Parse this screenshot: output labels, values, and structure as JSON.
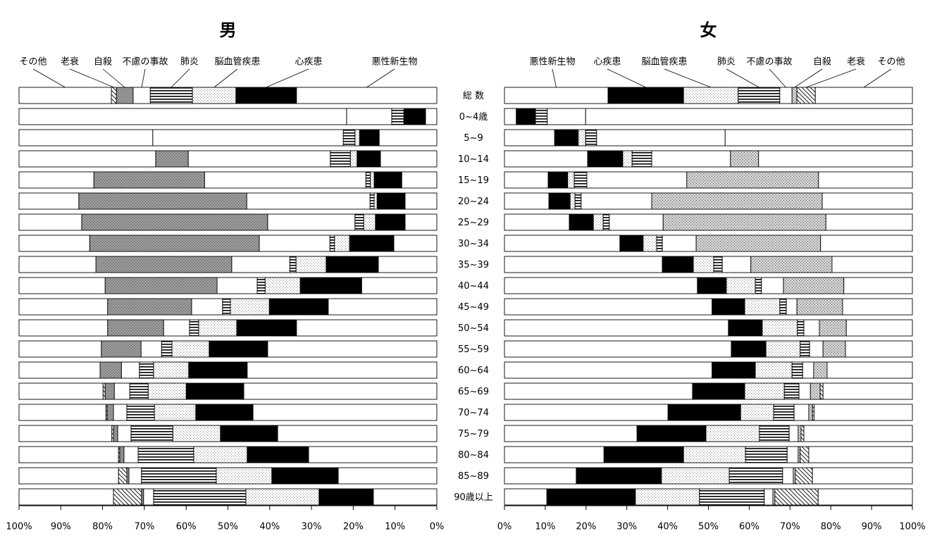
{
  "chart_data": [
    {
      "type": "stacked-bar-horizontal",
      "title": "男",
      "categories": [
        "総 数",
        "0~4歳",
        "5~9",
        "10~14",
        "15~19",
        "20~24",
        "25~29",
        "30~34",
        "35~39",
        "40~44",
        "45~49",
        "50~54",
        "55~59",
        "60~64",
        "65~69",
        "70~74",
        "75~79",
        "80~84",
        "85~89",
        "90歳以上"
      ],
      "xlim": [
        100,
        0
      ],
      "xticks": [
        {
          "value": 100,
          "label": "100%"
        },
        {
          "value": 90,
          "label": "90%"
        },
        {
          "value": 80,
          "label": "80%"
        },
        {
          "value": 70,
          "label": "70%"
        },
        {
          "value": 60,
          "label": "60%"
        },
        {
          "value": 50,
          "label": "50%"
        },
        {
          "value": 40,
          "label": "40%"
        },
        {
          "value": 30,
          "label": "30%"
        },
        {
          "value": 20,
          "label": "20%"
        },
        {
          "value": 10,
          "label": "10%"
        },
        {
          "value": 0,
          "label": "0%"
        }
      ],
      "series": [
        {
          "name": "悪性新生物",
          "color": "#ffffff",
          "pattern": "none",
          "values": [
            33.6,
            2.7,
            13.8,
            13.5,
            8.4,
            7.6,
            7.6,
            10.3,
            14.0,
            18.0,
            26.0,
            33.6,
            40.5,
            45.4,
            46.2,
            44.0,
            38.1,
            30.7,
            23.6,
            15.2
          ]
        },
        {
          "name": "心疾患",
          "color": "#000000",
          "pattern": "none",
          "values": [
            14.5,
            5.2,
            4.7,
            5.6,
            6.6,
            6.7,
            7.1,
            10.6,
            12.5,
            14.7,
            14.1,
            14.3,
            14.0,
            14.0,
            13.8,
            13.7,
            13.7,
            14.7,
            15.9,
            13.0
          ]
        },
        {
          "name": "脳血管疾患",
          "color": "#ffffff",
          "pattern": "dots",
          "values": [
            10.4,
            0,
            1.1,
            1.6,
            0.9,
            0.7,
            2.8,
            3.6,
            7.2,
            8.4,
            9.3,
            9.1,
            8.9,
            8.4,
            9.1,
            9.9,
            11.4,
            12.8,
            13.3,
            17.5
          ]
        },
        {
          "name": "肺炎",
          "color": "#ffffff",
          "pattern": "hlines",
          "values": [
            10.1,
            2.9,
            2.8,
            4.8,
            1.1,
            1.0,
            2.1,
            1.1,
            1.5,
            1.9,
            1.9,
            2.2,
            2.5,
            3.4,
            4.4,
            6.6,
            10.0,
            13.3,
            17.9,
            22.1
          ]
        },
        {
          "name": "不慮の事故",
          "color": "#ffffff",
          "pattern": "none",
          "values": [
            4.1,
            10.8,
            45.6,
            34.0,
            38.6,
            29.5,
            20.9,
            16.9,
            13.9,
            9.6,
            7.4,
            6.2,
            4.9,
            4.3,
            3.7,
            3.2,
            3.2,
            3.4,
            3.0,
            2.4
          ]
        },
        {
          "name": "自殺",
          "color": "#9a9a9a",
          "pattern": "dots",
          "values": [
            4.0,
            0,
            0,
            7.8,
            26.5,
            40.2,
            44.5,
            40.6,
            32.5,
            26.8,
            20.1,
            13.4,
            9.5,
            5.1,
            2.2,
            1.5,
            1.0,
            1.0,
            0.5,
            0.5
          ]
        },
        {
          "name": "老衰",
          "color": "#ffffff",
          "pattern": "hatch",
          "values": [
            1.2,
            0,
            0,
            0,
            0,
            0,
            0,
            0,
            0,
            0,
            0,
            0,
            0,
            0,
            0.5,
            0.3,
            0.4,
            0.3,
            2.0,
            6.7
          ]
        },
        {
          "name": "その他",
          "color": "#ffffff",
          "pattern": "none",
          "values": [
            22.1,
            78.4,
            32.0,
            32.7,
            17.9,
            14.3,
            15.0,
            16.9,
            18.4,
            20.6,
            21.2,
            21.2,
            19.7,
            19.4,
            20.1,
            20.8,
            22.2,
            23.8,
            23.8,
            22.6
          ]
        }
      ]
    },
    {
      "type": "stacked-bar-horizontal",
      "title": "女",
      "xlim": [
        0,
        100
      ],
      "xticks": [
        {
          "value": 0,
          "label": "0%"
        },
        {
          "value": 10,
          "label": "10%"
        },
        {
          "value": 20,
          "label": "20%"
        },
        {
          "value": 30,
          "label": "30%"
        },
        {
          "value": 40,
          "label": "40%"
        },
        {
          "value": 50,
          "label": "50%"
        },
        {
          "value": 60,
          "label": "60%"
        },
        {
          "value": 70,
          "label": "70%"
        },
        {
          "value": 80,
          "label": "80%"
        },
        {
          "value": 90,
          "label": "90%"
        },
        {
          "value": 100,
          "label": "100%"
        }
      ],
      "series": [
        {
          "name": "悪性新生物",
          "color": "#ffffff",
          "pattern": "none",
          "values": [
            25.4,
            2.9,
            12.3,
            20.4,
            10.7,
            10.9,
            15.9,
            28.3,
            38.7,
            47.3,
            50.9,
            54.9,
            55.6,
            50.9,
            46.1,
            40.1,
            32.5,
            24.4,
            17.6,
            10.4
          ]
        },
        {
          "name": "心疾患",
          "color": "#000000",
          "pattern": "none",
          "values": [
            18.5,
            4.7,
            5.8,
            8.6,
            4.8,
            5.2,
            5.9,
            5.7,
            7.6,
            7.1,
            8.0,
            8.3,
            8.5,
            10.6,
            12.8,
            17.8,
            16.9,
            19.5,
            20.9,
            21.7
          ]
        },
        {
          "name": "脳血管疾患",
          "color": "#ffffff",
          "pattern": "dots",
          "values": [
            13.4,
            0,
            1.8,
            2.3,
            1.6,
            1.2,
            2.4,
            3.3,
            5.0,
            7.1,
            8.6,
            8.6,
            8.4,
            9.0,
            9.7,
            8.1,
            13.1,
            15.2,
            16.6,
            15.7
          ]
        },
        {
          "name": "肺炎",
          "color": "#ffffff",
          "pattern": "hlines",
          "values": [
            10.2,
            2.9,
            2.7,
            4.8,
            3.1,
            1.5,
            1.5,
            1.4,
            2.1,
            1.5,
            1.6,
            1.6,
            2.3,
            2.6,
            3.6,
            5.0,
            7.3,
            10.2,
            13.1,
            15.9
          ]
        },
        {
          "name": "不慮の事故",
          "color": "#ffffff",
          "pattern": "none",
          "values": [
            3.0,
            9.4,
            31.5,
            19.3,
            24.5,
            17.3,
            13.2,
            8.3,
            7.0,
            5.4,
            2.6,
            3.8,
            3.3,
            2.7,
            2.8,
            3.6,
            2.2,
            2.7,
            2.6,
            2.1
          ]
        },
        {
          "name": "自殺",
          "color": "#d2d2d2",
          "pattern": "dots",
          "values": [
            1.2,
            0,
            0,
            6.9,
            32.3,
            41.8,
            39.9,
            30.5,
            19.9,
            14.8,
            11.2,
            6.6,
            5.5,
            3.3,
            2.4,
            0.9,
            0.7,
            0.5,
            0.5,
            0.5
          ]
        },
        {
          "name": "老衰",
          "color": "#ffffff",
          "pattern": "hatch",
          "values": [
            4.5,
            0,
            0,
            0,
            0,
            0,
            0,
            0,
            0,
            0,
            0,
            0,
            0,
            0,
            0.7,
            0.4,
            0.7,
            2.1,
            4.2,
            10.6
          ]
        },
        {
          "name": "その他",
          "color": "#ffffff",
          "pattern": "none",
          "values": [
            23.8,
            80.1,
            45.9,
            37.7,
            23.0,
            22.1,
            21.2,
            22.5,
            19.7,
            16.8,
            17.1,
            16.2,
            16.4,
            20.9,
            21.9,
            24.1,
            26.6,
            25.4,
            24.5,
            23.1
          ]
        }
      ]
    }
  ]
}
